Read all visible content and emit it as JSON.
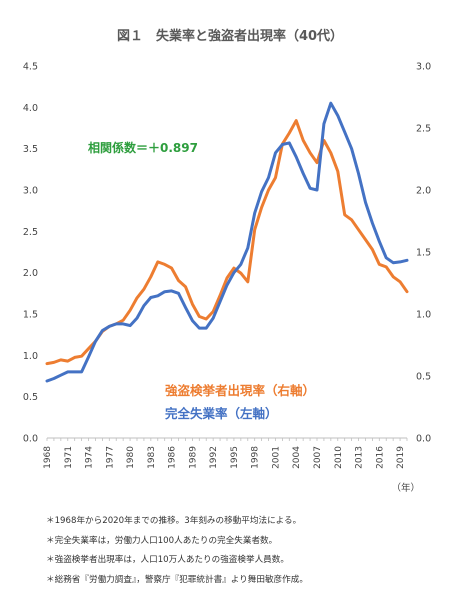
{
  "chart_data": {
    "type": "line",
    "title": "図１　失業率と強盗者出現率（40代）",
    "x_unit": "（年）",
    "x": [
      1968,
      1969,
      1970,
      1971,
      1972,
      1973,
      1974,
      1975,
      1976,
      1977,
      1978,
      1979,
      1980,
      1981,
      1982,
      1983,
      1984,
      1985,
      1986,
      1987,
      1988,
      1989,
      1990,
      1991,
      1992,
      1993,
      1994,
      1995,
      1996,
      1997,
      1998,
      1999,
      2000,
      2001,
      2002,
      2003,
      2004,
      2005,
      2006,
      2007,
      2008,
      2009,
      2010,
      2011,
      2012,
      2013,
      2014,
      2015,
      2016,
      2017,
      2018,
      2019,
      2020
    ],
    "x_ticks": [
      1968,
      1971,
      1974,
      1977,
      1980,
      1983,
      1986,
      1989,
      1992,
      1995,
      1998,
      2001,
      2004,
      2007,
      2010,
      2013,
      2016,
      2019
    ],
    "left_axis": {
      "label": "左軸",
      "ylim": [
        0,
        4.5
      ],
      "ticks": [
        "0.0",
        "0.5",
        "1.0",
        "1.5",
        "2.0",
        "2.5",
        "3.0",
        "3.5",
        "4.0",
        "4.5"
      ]
    },
    "right_axis": {
      "label": "右軸",
      "ylim": [
        0,
        3.0
      ],
      "ticks": [
        "0.0",
        "0.5",
        "1.0",
        "1.5",
        "2.0",
        "2.5",
        "3.0"
      ]
    },
    "series": [
      {
        "name": "完全失業率（左軸）",
        "axis": "left",
        "color": "#4472c4",
        "values": [
          0.69,
          0.72,
          0.76,
          0.8,
          0.8,
          0.8,
          0.98,
          1.17,
          1.3,
          1.35,
          1.38,
          1.38,
          1.36,
          1.45,
          1.6,
          1.7,
          1.72,
          1.77,
          1.78,
          1.75,
          1.58,
          1.42,
          1.33,
          1.33,
          1.45,
          1.65,
          1.85,
          2.0,
          2.1,
          2.3,
          2.72,
          2.98,
          3.15,
          3.45,
          3.55,
          3.57,
          3.4,
          3.2,
          3.02,
          3.0,
          3.8,
          4.05,
          3.9,
          3.7,
          3.5,
          3.2,
          2.85,
          2.6,
          2.38,
          2.18,
          2.12,
          2.13,
          2.15
        ]
      },
      {
        "name": "強盗検挙者出現率（右軸）",
        "axis": "right",
        "color": "#ed7d31",
        "values": [
          0.6,
          0.61,
          0.63,
          0.62,
          0.65,
          0.66,
          0.72,
          0.78,
          0.86,
          0.9,
          0.92,
          0.95,
          1.03,
          1.13,
          1.2,
          1.3,
          1.42,
          1.4,
          1.37,
          1.27,
          1.22,
          1.08,
          0.98,
          0.96,
          1.02,
          1.15,
          1.29,
          1.37,
          1.33,
          1.26,
          1.68,
          1.86,
          2.0,
          2.1,
          2.37,
          2.46,
          2.56,
          2.4,
          2.3,
          2.22,
          2.4,
          2.3,
          2.15,
          1.8,
          1.76,
          1.68,
          1.6,
          1.52,
          1.4,
          1.38,
          1.3,
          1.26,
          1.18
        ]
      }
    ],
    "annotation": "相関係数＝＋0.897"
  },
  "notes": [
    "＊1968年から2020年までの推移。3年刻みの移動平均法による。",
    "＊完全失業率は，労働力人口100人あたりの完全失業者数。",
    "＊強盗検挙者出現率は，人口10万人あたりの強盗検挙人員数。",
    "＊総務省『労働力調査』，警察庁『犯罪統計書』より舞田敏彦作成。"
  ]
}
